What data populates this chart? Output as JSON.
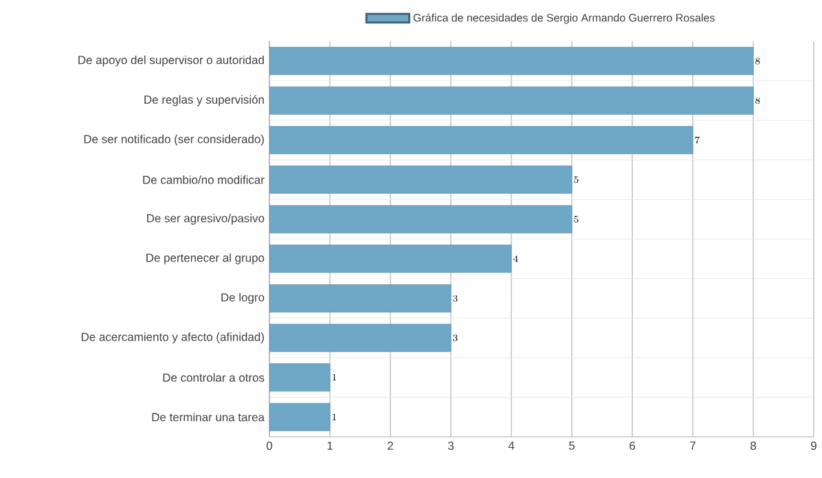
{
  "chart_data": {
    "type": "bar",
    "orientation": "horizontal",
    "categories": [
      "De apoyo del supervisor o autoridad",
      "De reglas y supervisión",
      "De ser notificado (ser considerado)",
      "De cambio/no modificar",
      "De ser agresivo/pasivo",
      "De pertenecer al grupo",
      "De logro",
      "De acercamiento y afecto (afinidad)",
      "De controlar a otros",
      "De terminar una tarea"
    ],
    "series": [
      {
        "name": "Gráfica de necesidades de Sergio Armando Guerrero Rosales",
        "color": "#6fa7c6",
        "values": [
          8,
          8,
          7,
          5,
          5,
          4,
          3,
          3,
          1,
          1
        ]
      }
    ],
    "xlim": [
      0,
      9
    ],
    "xticks": [
      0,
      1,
      2,
      3,
      4,
      5,
      6,
      7,
      8,
      9
    ],
    "grid": true,
    "legend": "top",
    "data_labels": true
  }
}
